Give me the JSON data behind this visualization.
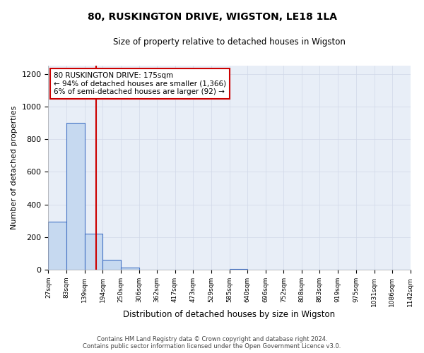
{
  "title": "80, RUSKINGTON DRIVE, WIGSTON, LE18 1LA",
  "subtitle": "Size of property relative to detached houses in Wigston",
  "xlabel": "Distribution of detached houses by size in Wigston",
  "ylabel": "Number of detached properties",
  "bin_edges": [
    27,
    83,
    139,
    194,
    250,
    306,
    362,
    417,
    473,
    529,
    585,
    640,
    696,
    752,
    808,
    863,
    919,
    975,
    1031,
    1086,
    1142
  ],
  "bin_labels": [
    "27sqm",
    "83sqm",
    "139sqm",
    "194sqm",
    "250sqm",
    "306sqm",
    "362sqm",
    "417sqm",
    "473sqm",
    "529sqm",
    "585sqm",
    "640sqm",
    "696sqm",
    "752sqm",
    "808sqm",
    "863sqm",
    "919sqm",
    "975sqm",
    "1031sqm",
    "1086sqm",
    "1142sqm"
  ],
  "bar_heights": [
    295,
    900,
    220,
    60,
    15,
    0,
    0,
    0,
    0,
    0,
    5,
    0,
    0,
    0,
    0,
    0,
    0,
    0,
    0,
    0
  ],
  "bar_color": "#c6d9f0",
  "bar_edgecolor": "#4472c4",
  "property_line_x": 175,
  "property_line_color": "#cc0000",
  "ylim": [
    0,
    1250
  ],
  "yticks": [
    0,
    200,
    400,
    600,
    800,
    1000,
    1200
  ],
  "annotation_title": "80 RUSKINGTON DRIVE: 175sqm",
  "annotation_line1": "← 94% of detached houses are smaller (1,366)",
  "annotation_line2": "6% of semi-detached houses are larger (92) →",
  "annotation_box_color": "#ffffff",
  "annotation_box_edgecolor": "#cc0000",
  "footer_line1": "Contains HM Land Registry data © Crown copyright and database right 2024.",
  "footer_line2": "Contains public sector information licensed under the Open Government Licence v3.0.",
  "background_color": "#ffffff",
  "plot_bg_color": "#e8eef7",
  "grid_color": "#d0d8e8"
}
